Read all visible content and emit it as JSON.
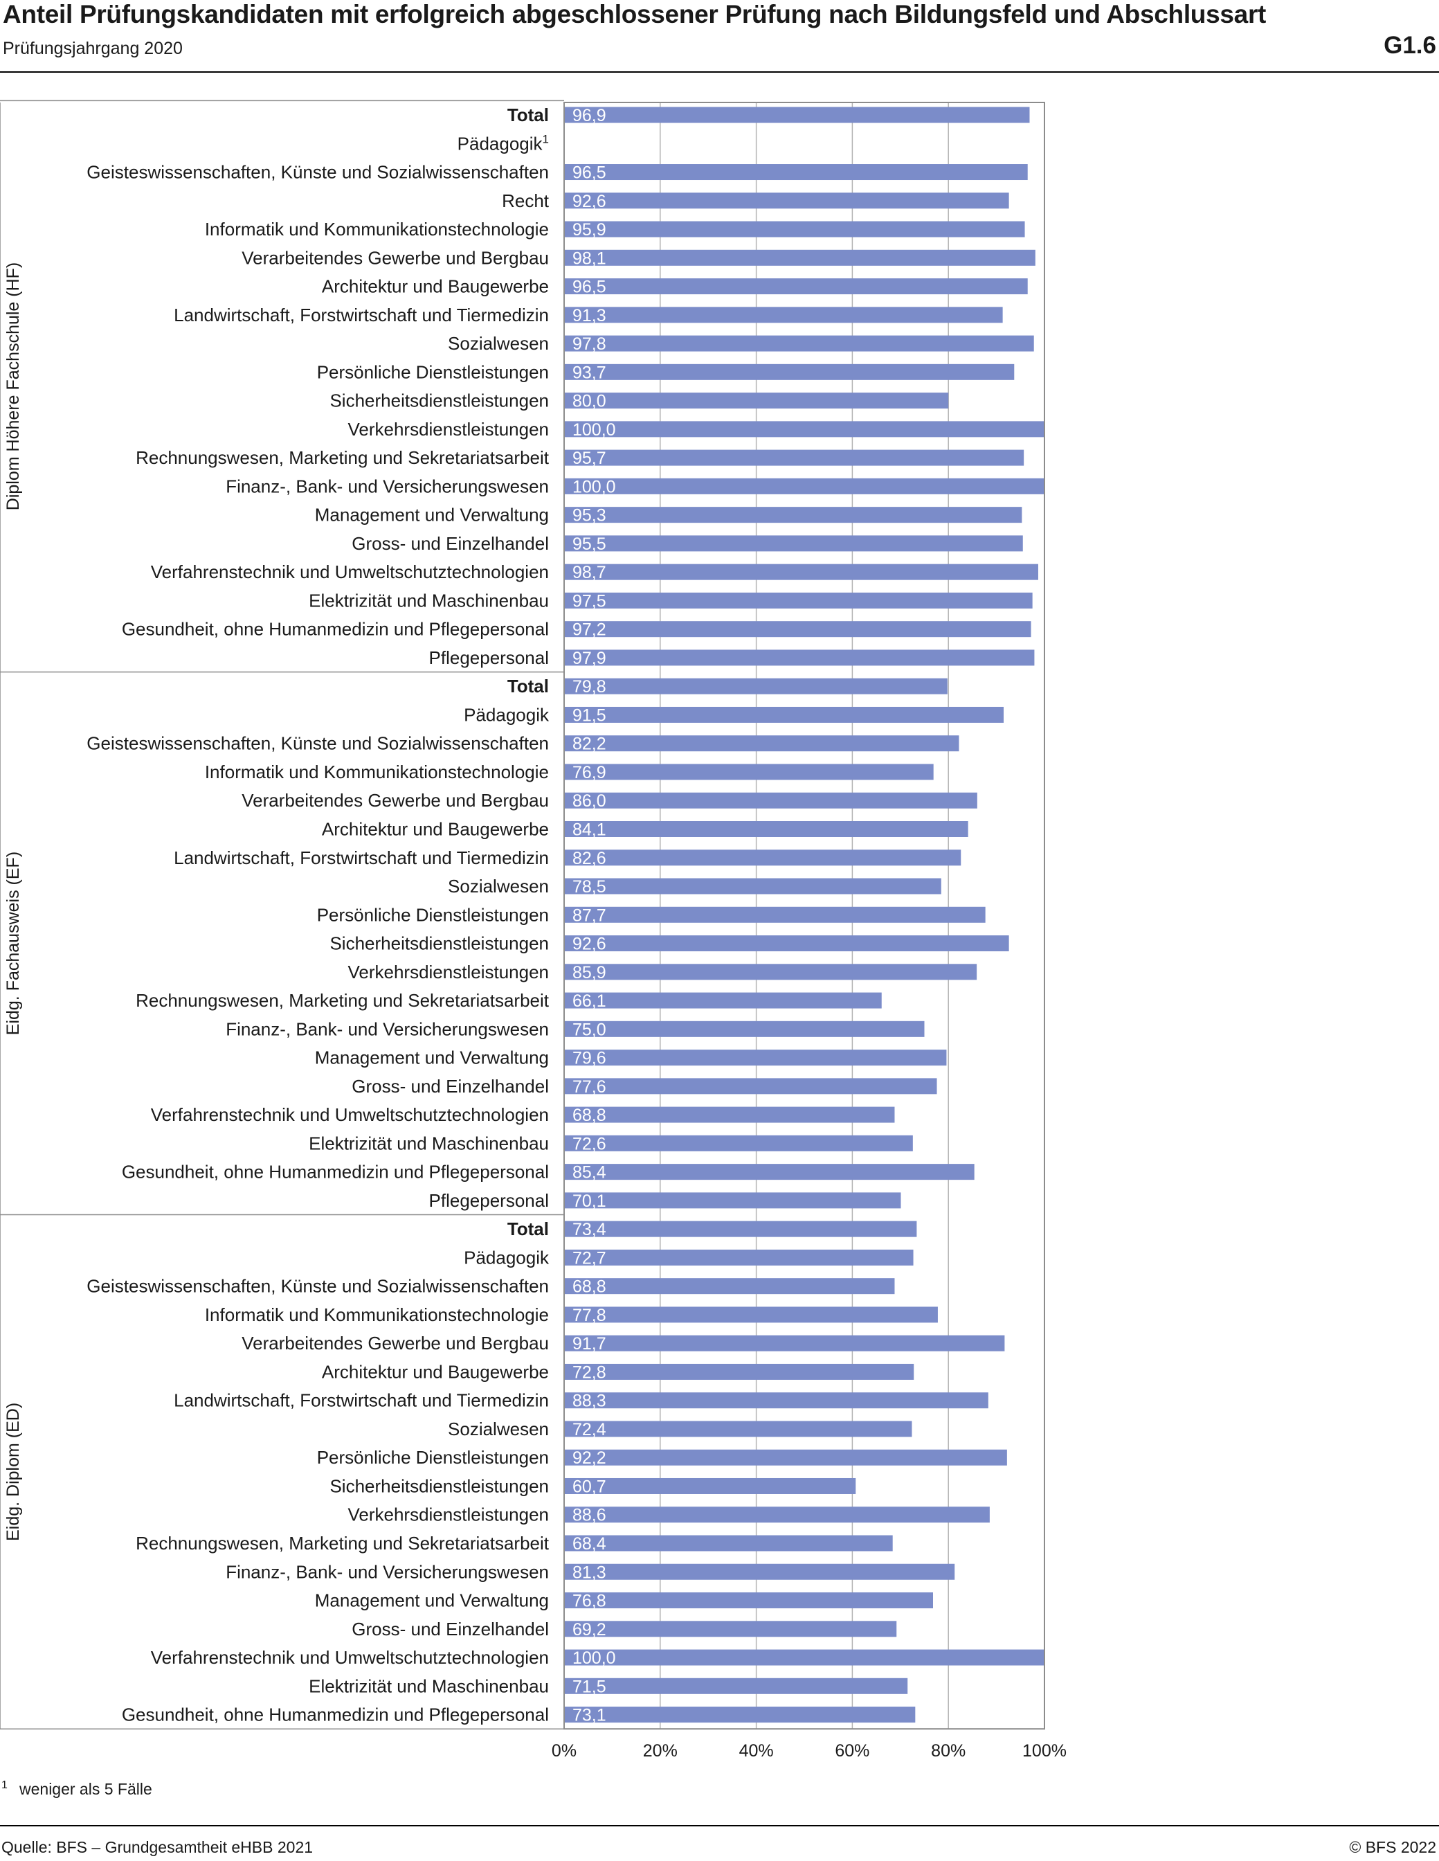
{
  "header": {
    "title": "Anteil Prüfungskandidaten mit erfolgreich abgeschlossener Prüfung nach Bildungsfeld und Abschlussart",
    "subtitle": "Prüfungsjahrgang 2020",
    "code": "G1.6"
  },
  "footer": {
    "footnote_marker": "1",
    "footnote": "weniger als 5 Fälle",
    "source": "Quelle: BFS – Grundgesamtheit eHBB 2021",
    "copyright": "© BFS 2022"
  },
  "colors": {
    "bar": "#7b8cc9",
    "grid": "#b3b3b3",
    "frame": "#8c8c8c",
    "value_label": "#ffffff"
  },
  "chart_data": {
    "type": "bar",
    "orientation": "horizontal",
    "xlim": [
      0,
      100
    ],
    "x_ticks": [
      "0%",
      "20%",
      "40%",
      "60%",
      "80%",
      "100%"
    ],
    "grid": true,
    "legend": "none",
    "groups": [
      {
        "name": "Diplom Höhere Fachschule (HF)",
        "categories": [
          "Total",
          "Pädagogik",
          "Geisteswissenschaften, Künste und Sozialwissenschaften",
          "Recht",
          "Informatik und Kommunikationstechnologie",
          "Verarbeitendes Gewerbe und Bergbau",
          "Architektur und Baugewerbe",
          "Landwirtschaft, Forstwirtschaft und Tiermedizin",
          "Sozialwesen",
          "Persönliche Dienstleistungen",
          "Sicherheitsdienstleistungen",
          "Verkehrsdienstleistungen",
          "Rechnungswesen, Marketing und Sekretariatsarbeit",
          "Finanz-, Bank- und Versicherungswesen",
          "Management und Verwaltung",
          "Gross- und Einzelhandel",
          "Verfahrenstechnik und Umweltschutztechnologien",
          "Elektrizität und Maschinenbau",
          "Gesundheit, ohne Humanmedizin und Pflegepersonal",
          "Pflegepersonal"
        ],
        "values": [
          96.9,
          null,
          96.5,
          92.6,
          95.9,
          98.1,
          96.5,
          91.3,
          97.8,
          93.7,
          80.0,
          100.0,
          95.7,
          100.0,
          95.3,
          95.5,
          98.7,
          97.5,
          97.2,
          97.9
        ],
        "labels": [
          "96,9",
          "",
          "96,5",
          "92,6",
          "95,9",
          "98,1",
          "96,5",
          "91,3",
          "97,8",
          "93,7",
          "80,0",
          "100,0",
          "95,7",
          "100,0",
          "95,3",
          "95,5",
          "98,7",
          "97,5",
          "97,2",
          "97,9"
        ],
        "footnote_marks": [
          "",
          "1",
          "",
          "",
          "",
          "",
          "",
          "",
          "",
          "",
          "",
          "",
          "",
          "",
          "",
          "",
          "",
          "",
          "",
          ""
        ]
      },
      {
        "name": "Eidg. Fachausweis (EF)",
        "categories": [
          "Total",
          "Pädagogik",
          "Geisteswissenschaften, Künste und Sozialwissenschaften",
          "Informatik und Kommunikationstechnologie",
          "Verarbeitendes Gewerbe und Bergbau",
          "Architektur und Baugewerbe",
          "Landwirtschaft, Forstwirtschaft und Tiermedizin",
          "Sozialwesen",
          "Persönliche Dienstleistungen",
          "Sicherheitsdienstleistungen",
          "Verkehrsdienstleistungen",
          "Rechnungswesen, Marketing und Sekretariatsarbeit",
          "Finanz-, Bank- und Versicherungswesen",
          "Management und Verwaltung",
          "Gross- und Einzelhandel",
          "Verfahrenstechnik und Umweltschutztechnologien",
          "Elektrizität und Maschinenbau",
          "Gesundheit, ohne Humanmedizin und Pflegepersonal",
          "Pflegepersonal"
        ],
        "values": [
          79.8,
          91.5,
          82.2,
          76.9,
          86.0,
          84.1,
          82.6,
          78.5,
          87.7,
          92.6,
          85.9,
          66.1,
          75.0,
          79.6,
          77.6,
          68.8,
          72.6,
          85.4,
          70.1
        ],
        "labels": [
          "79,8",
          "91,5",
          "82,2",
          "76,9",
          "86,0",
          "84,1",
          "82,6",
          "78,5",
          "87,7",
          "92,6",
          "85,9",
          "66,1",
          "75,0",
          "79,6",
          "77,6",
          "68,8",
          "72,6",
          "85,4",
          "70,1"
        ],
        "footnote_marks": [
          "",
          "",
          "",
          "",
          "",
          "",
          "",
          "",
          "",
          "",
          "",
          "",
          "",
          "",
          "",
          "",
          "",
          "",
          ""
        ]
      },
      {
        "name": "Eidg. Diplom (ED)",
        "categories": [
          "Total",
          "Pädagogik",
          "Geisteswissenschaften, Künste und Sozialwissenschaften",
          "Informatik und Kommunikationstechnologie",
          "Verarbeitendes Gewerbe und Bergbau",
          "Architektur und Baugewerbe",
          "Landwirtschaft, Forstwirtschaft und Tiermedizin",
          "Sozialwesen",
          "Persönliche Dienstleistungen",
          "Sicherheitsdienstleistungen",
          "Verkehrsdienstleistungen",
          "Rechnungswesen, Marketing und Sekretariatsarbeit",
          "Finanz-, Bank- und Versicherungswesen",
          "Management und Verwaltung",
          "Gross- und Einzelhandel",
          "Verfahrenstechnik und Umweltschutztechnologien",
          "Elektrizität und Maschinenbau",
          "Gesundheit, ohne Humanmedizin und Pflegepersonal"
        ],
        "values": [
          73.4,
          72.7,
          68.8,
          77.8,
          91.7,
          72.8,
          88.3,
          72.4,
          92.2,
          60.7,
          88.6,
          68.4,
          81.3,
          76.8,
          69.2,
          100.0,
          71.5,
          73.1
        ],
        "labels": [
          "73,4",
          "72,7",
          "68,8",
          "77,8",
          "91,7",
          "72,8",
          "88,3",
          "72,4",
          "92,2",
          "60,7",
          "88,6",
          "68,4",
          "81,3",
          "76,8",
          "69,2",
          "100,0",
          "71,5",
          "73,1"
        ],
        "footnote_marks": [
          "",
          "",
          "",
          "",
          "",
          "",
          "",
          "",
          "",
          "",
          "",
          "",
          "",
          "",
          "",
          "",
          "",
          ""
        ]
      }
    ]
  }
}
